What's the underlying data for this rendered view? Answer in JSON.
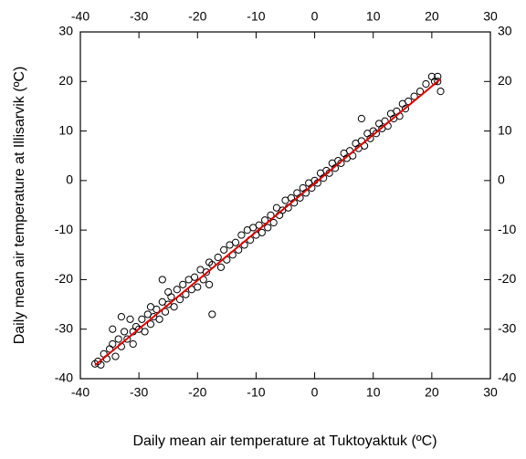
{
  "chart_data": {
    "type": "scatter",
    "xlabel": "Daily mean air temperature at Tuktoyaktuk (ºC)",
    "ylabel": "Daily mean air temperature at Illisarvik (ºC)",
    "x": [
      -37.5,
      -37,
      -36.5,
      -36,
      -35.5,
      -35,
      -34.5,
      -34,
      -33.5,
      -33,
      -32.5,
      -32,
      -31.5,
      -31,
      -31,
      -30.5,
      -30,
      -29.5,
      -29,
      -28.5,
      -28,
      -28,
      -27.5,
      -27,
      -26.5,
      -26,
      -25.5,
      -25,
      -25,
      -24.5,
      -24,
      -23.5,
      -23,
      -22.5,
      -22,
      -21.5,
      -21,
      -20.5,
      -20,
      -19.5,
      -19,
      -18.5,
      -18,
      -18,
      -17.5,
      -17.5,
      -16.5,
      -16,
      -15.5,
      -15,
      -14.5,
      -14,
      -13.5,
      -13,
      -12.5,
      -12,
      -11.5,
      -11,
      -10.5,
      -10,
      -9.5,
      -9,
      -8.5,
      -8,
      -7.5,
      -7,
      -6.5,
      -6,
      -5.5,
      -5,
      -4.5,
      -4,
      -3.5,
      -3,
      -2.5,
      -2,
      -1.5,
      -1,
      -0.5,
      0,
      0.5,
      1,
      1.5,
      2,
      2.5,
      3,
      3.5,
      4,
      4.5,
      5,
      5.5,
      6,
      6.5,
      7,
      7.5,
      8,
      8.5,
      9,
      9.5,
      10,
      10.5,
      11,
      11.5,
      12,
      12.5,
      13,
      13.5,
      14,
      14.5,
      15,
      15.5,
      16,
      17,
      18,
      19,
      20,
      20.5,
      21,
      21.5,
      21,
      8,
      -26,
      -33,
      -34.5
    ],
    "values": [
      -37,
      -36.5,
      -37.2,
      -35,
      -36,
      -34,
      -33,
      -35.5,
      -32,
      -33.5,
      -30.5,
      -32,
      -28,
      -30.5,
      -33,
      -29.5,
      -30,
      -28,
      -30.5,
      -27,
      -29,
      -25.5,
      -27.5,
      -26,
      -28,
      -24.5,
      -26.5,
      -25,
      -22.5,
      -23.5,
      -25.5,
      -22,
      -24,
      -21,
      -23,
      -20,
      -22,
      -19.5,
      -21.5,
      -18,
      -20,
      -18.5,
      -16.5,
      -21,
      -17,
      -27,
      -15.5,
      -17.5,
      -14,
      -16,
      -13,
      -15,
      -12.5,
      -14,
      -11,
      -13,
      -10,
      -12,
      -9.5,
      -11,
      -9,
      -10.5,
      -8,
      -9.5,
      -7,
      -8.5,
      -5.5,
      -7,
      -6,
      -4,
      -5.5,
      -3.5,
      -4.5,
      -2.5,
      -3.5,
      -1.5,
      -2.5,
      -0.5,
      -1.5,
      0,
      -0.5,
      1.5,
      0.5,
      2,
      1.5,
      3.5,
      2.5,
      4,
      3.5,
      5.5,
      4.5,
      6,
      5,
      7.5,
      6.5,
      8,
      7,
      9.5,
      8.5,
      10,
      9.5,
      11.5,
      10.5,
      12,
      11,
      13.5,
      12.5,
      14,
      13,
      15.5,
      14.5,
      16,
      17,
      18,
      19.5,
      21,
      20,
      21,
      18,
      20,
      12.5,
      -20,
      -27.5,
      -30
    ],
    "color": "#000000",
    "fit_line": {
      "x": [
        -37.5,
        21.5
      ],
      "y": [
        -37.3,
        20.5
      ],
      "color": "#e00000"
    },
    "xlim": [
      -40,
      30
    ],
    "ylim": [
      -40,
      30
    ],
    "xticks": [
      -40,
      -30,
      -20,
      -10,
      0,
      10,
      20,
      30
    ],
    "yticks": [
      -40,
      -30,
      -20,
      -10,
      0,
      10,
      20,
      30
    ],
    "grid": false
  }
}
